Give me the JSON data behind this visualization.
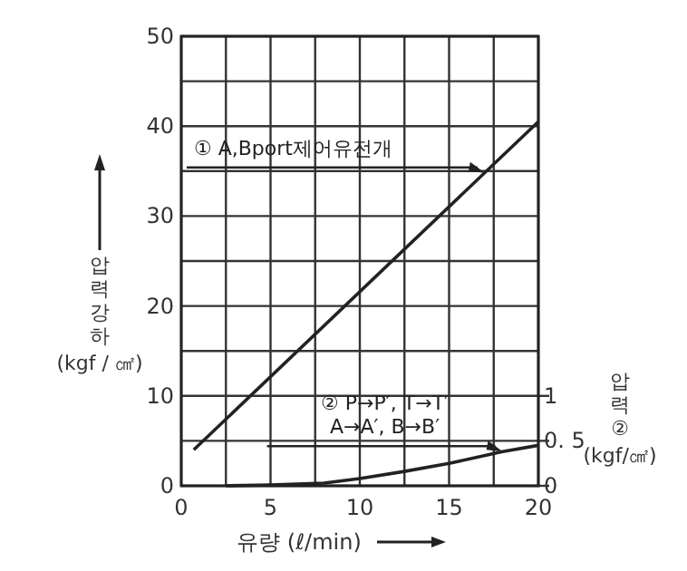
{
  "chart_data": {
    "type": "line",
    "xlabel": "유량 (ℓ/min)",
    "ylabel": "압력강하\n(kgf / ㎠)",
    "y2label": "압력②\n(kgf/㎠)",
    "xlim": [
      0,
      20
    ],
    "xticks": [
      0,
      {
        "value": 2.5,
        "label": null
      },
      5,
      {
        "value": 7.5,
        "label": null
      },
      10,
      {
        "value": 12.5,
        "label": null
      },
      15,
      {
        "value": 17.5,
        "label": null
      },
      20
    ],
    "ylim": [
      0,
      50
    ],
    "yticks": [
      0,
      {
        "value": 5,
        "label": null
      },
      10,
      {
        "value": 15,
        "label": null
      },
      20,
      {
        "value": 25,
        "label": null
      },
      30,
      {
        "value": 35,
        "label": null
      },
      40,
      {
        "value": 45,
        "label": null
      },
      50
    ],
    "y2lim": [
      0,
      5
    ],
    "y2ticks": [
      0,
      {
        "value": 0.5,
        "label": "0. 5"
      },
      1
    ],
    "grid": true,
    "marker": "none",
    "line_style": "solid",
    "series": [
      {
        "color": "#222222",
        "x": [
          0.7,
          20
        ],
        "values": [
          4,
          40.5
        ]
      },
      {
        "color": "#222222",
        "axis": "y2",
        "x": [
          2.5,
          5,
          8,
          10,
          12.5,
          15,
          18,
          20
        ],
        "values": [
          0,
          0.01,
          0.03,
          0.08,
          0.16,
          0.25,
          0.38,
          0.45
        ]
      }
    ],
    "annotations": [
      {
        "text": "① A,Bport제어유전개",
        "x": 17,
        "y": 34.8
      },
      {
        "text": "② P→P′, T→T′\nA→A′, B→B′",
        "x": 18,
        "y": 3.8
      }
    ]
  }
}
